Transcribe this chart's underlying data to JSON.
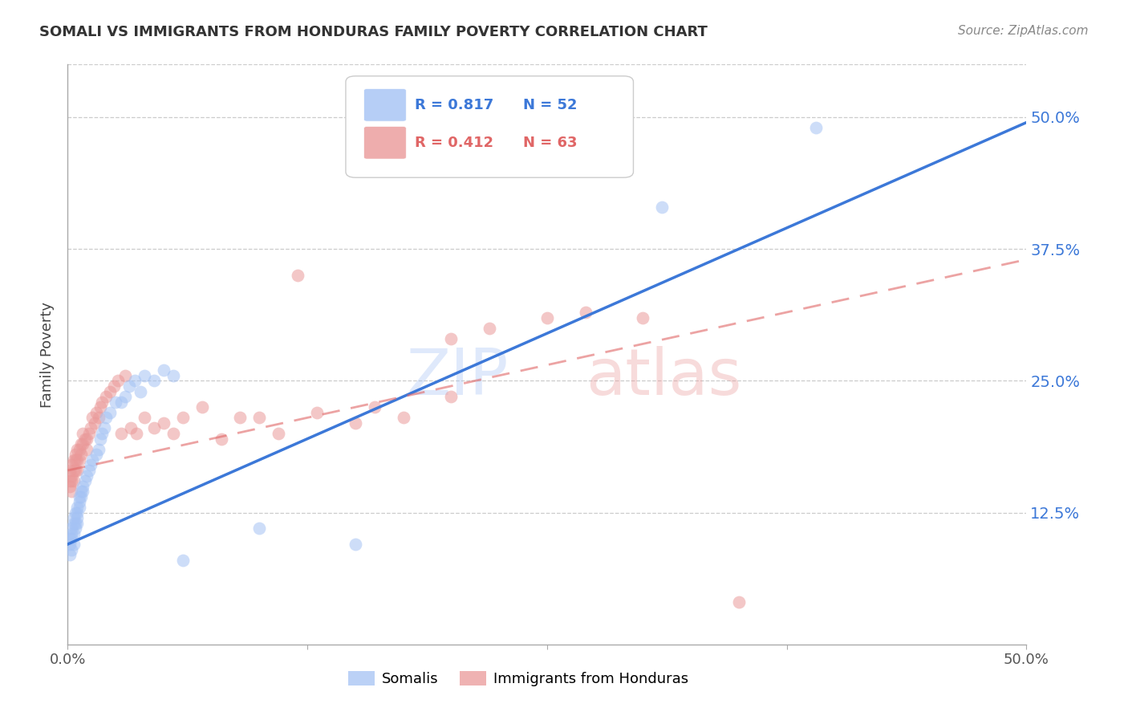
{
  "title": "SOMALI VS IMMIGRANTS FROM HONDURAS FAMILY POVERTY CORRELATION CHART",
  "source": "Source: ZipAtlas.com",
  "ylabel": "Family Poverty",
  "legend_label1": "Somalis",
  "legend_label2": "Immigrants from Honduras",
  "r_somali": 0.817,
  "n_somali": 52,
  "r_honduras": 0.412,
  "n_honduras": 63,
  "ytick_labels": [
    "12.5%",
    "25.0%",
    "37.5%",
    "50.0%"
  ],
  "ytick_values": [
    0.125,
    0.25,
    0.375,
    0.5
  ],
  "color_somali": "#a4c2f4",
  "color_honduras": "#ea9999",
  "color_line_somali": "#3c78d8",
  "color_line_honduras": "#e06666",
  "background": "#ffffff",
  "xlim": [
    0.0,
    0.5
  ],
  "ylim": [
    0.0,
    0.55
  ],
  "somali_x": [
    0.001,
    0.001,
    0.001,
    0.002,
    0.002,
    0.002,
    0.002,
    0.003,
    0.003,
    0.003,
    0.003,
    0.004,
    0.004,
    0.004,
    0.005,
    0.005,
    0.005,
    0.005,
    0.006,
    0.006,
    0.006,
    0.007,
    0.007,
    0.008,
    0.008,
    0.009,
    0.01,
    0.011,
    0.012,
    0.013,
    0.015,
    0.016,
    0.017,
    0.018,
    0.019,
    0.02,
    0.022,
    0.025,
    0.028,
    0.03,
    0.032,
    0.035,
    0.038,
    0.04,
    0.045,
    0.05,
    0.055,
    0.06,
    0.1,
    0.15,
    0.31,
    0.39
  ],
  "somali_y": [
    0.085,
    0.095,
    0.1,
    0.09,
    0.1,
    0.105,
    0.11,
    0.095,
    0.105,
    0.115,
    0.12,
    0.11,
    0.115,
    0.125,
    0.115,
    0.12,
    0.125,
    0.13,
    0.13,
    0.135,
    0.14,
    0.14,
    0.145,
    0.145,
    0.15,
    0.155,
    0.16,
    0.165,
    0.17,
    0.175,
    0.18,
    0.185,
    0.195,
    0.2,
    0.205,
    0.215,
    0.22,
    0.23,
    0.23,
    0.235,
    0.245,
    0.25,
    0.24,
    0.255,
    0.25,
    0.26,
    0.255,
    0.08,
    0.11,
    0.095,
    0.415,
    0.49
  ],
  "honduras_x": [
    0.001,
    0.001,
    0.001,
    0.002,
    0.002,
    0.002,
    0.002,
    0.003,
    0.003,
    0.003,
    0.004,
    0.004,
    0.004,
    0.005,
    0.005,
    0.005,
    0.006,
    0.006,
    0.007,
    0.007,
    0.008,
    0.008,
    0.009,
    0.01,
    0.01,
    0.011,
    0.012,
    0.013,
    0.014,
    0.015,
    0.016,
    0.017,
    0.018,
    0.02,
    0.022,
    0.024,
    0.026,
    0.028,
    0.03,
    0.033,
    0.036,
    0.04,
    0.045,
    0.05,
    0.055,
    0.06,
    0.07,
    0.08,
    0.09,
    0.1,
    0.11,
    0.13,
    0.15,
    0.16,
    0.175,
    0.2,
    0.22,
    0.25,
    0.27,
    0.3,
    0.12,
    0.2,
    0.35
  ],
  "honduras_y": [
    0.15,
    0.155,
    0.165,
    0.145,
    0.155,
    0.16,
    0.17,
    0.155,
    0.165,
    0.175,
    0.165,
    0.175,
    0.18,
    0.165,
    0.175,
    0.185,
    0.175,
    0.185,
    0.18,
    0.19,
    0.19,
    0.2,
    0.195,
    0.185,
    0.195,
    0.2,
    0.205,
    0.215,
    0.21,
    0.22,
    0.215,
    0.225,
    0.23,
    0.235,
    0.24,
    0.245,
    0.25,
    0.2,
    0.255,
    0.205,
    0.2,
    0.215,
    0.205,
    0.21,
    0.2,
    0.215,
    0.225,
    0.195,
    0.215,
    0.215,
    0.2,
    0.22,
    0.21,
    0.225,
    0.215,
    0.29,
    0.3,
    0.31,
    0.315,
    0.31,
    0.35,
    0.235,
    0.04
  ],
  "line_somali_x0": 0.0,
  "line_somali_y0": 0.095,
  "line_somali_x1": 0.5,
  "line_somali_y1": 0.495,
  "line_honduras_x0": 0.0,
  "line_honduras_y0": 0.165,
  "line_honduras_x1": 0.5,
  "line_honduras_y1": 0.365
}
